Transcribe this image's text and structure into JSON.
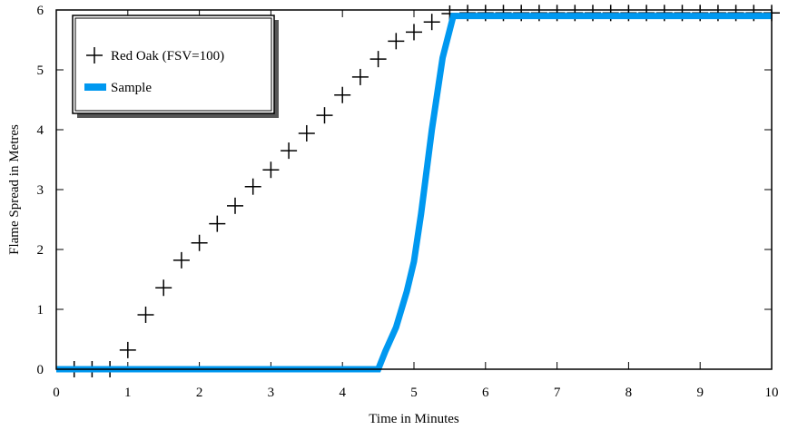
{
  "chart_data": {
    "type": "line",
    "x_label": "Time in Minutes",
    "y_label": "Flame Spread in Metres",
    "xlim": [
      0,
      10
    ],
    "ylim": [
      0,
      6
    ],
    "xticks": [
      0,
      1,
      2,
      3,
      4,
      5,
      6,
      7,
      8,
      9,
      10
    ],
    "yticks": [
      0,
      1,
      2,
      3,
      4,
      5,
      6
    ],
    "legend": "top-left",
    "series": [
      {
        "name": "Red Oak (FSV=100)",
        "color": "#000000",
        "marker": "plus",
        "x": [
          0.25,
          0.5,
          0.75,
          1.0,
          1.25,
          1.5,
          1.75,
          2.0,
          2.25,
          2.5,
          2.75,
          3.0,
          3.25,
          3.5,
          3.75,
          4.0,
          4.25,
          4.5,
          4.75,
          5.0,
          5.25,
          5.5,
          5.75,
          6.0,
          6.25,
          6.5,
          6.75,
          7.0,
          7.25,
          7.5,
          7.75,
          8.0,
          8.25,
          8.5,
          8.75,
          9.0,
          9.25,
          9.5,
          9.75,
          10.0
        ],
        "values": [
          0,
          0,
          0,
          0.32,
          0.91,
          1.36,
          1.82,
          2.11,
          2.43,
          2.73,
          3.05,
          3.33,
          3.65,
          3.94,
          4.24,
          4.58,
          4.88,
          5.18,
          5.48,
          5.63,
          5.8,
          5.94,
          5.95,
          5.95,
          5.95,
          5.95,
          5.95,
          5.95,
          5.95,
          5.95,
          5.95,
          5.95,
          5.95,
          5.95,
          5.95,
          5.95,
          5.95,
          5.95,
          5.95,
          5.95
        ]
      },
      {
        "name": "Sample",
        "color": "#0098f0",
        "marker": "none",
        "x": [
          0,
          4.5,
          4.6,
          4.75,
          4.9,
          5.0,
          5.1,
          5.25,
          5.4,
          5.55,
          10
        ],
        "values": [
          0,
          0,
          0.3,
          0.7,
          1.3,
          1.8,
          2.6,
          4.0,
          5.2,
          5.9,
          5.9
        ]
      }
    ]
  }
}
